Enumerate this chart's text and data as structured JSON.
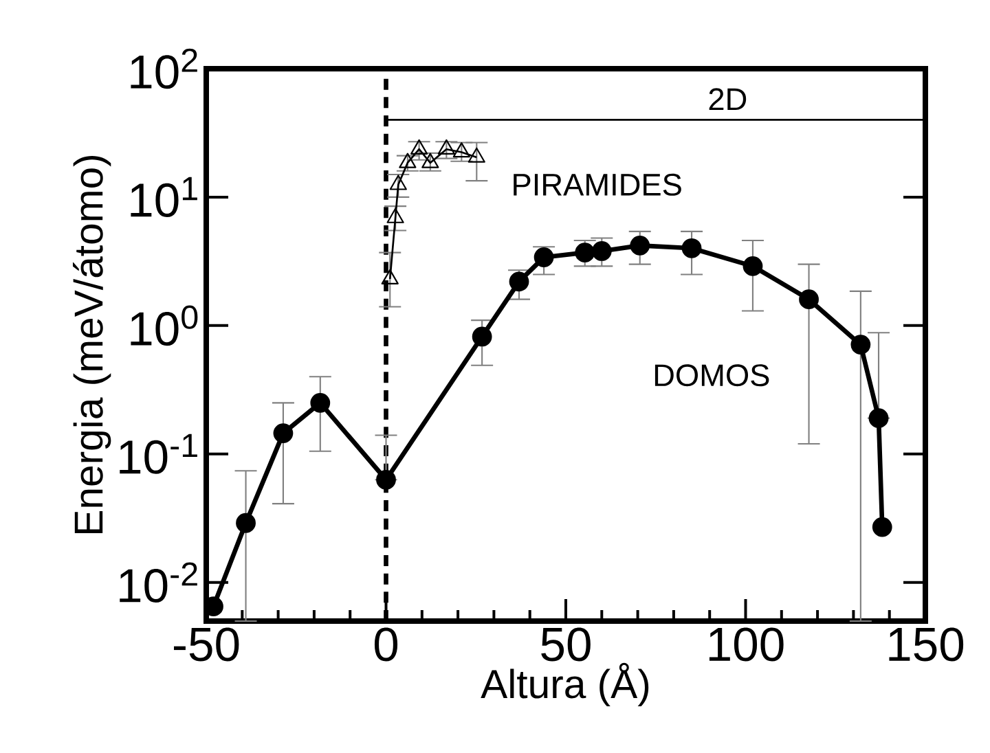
{
  "chart_data": {
    "type": "line",
    "xlabel": "Altura (Å)",
    "ylabel": "Energia (meV/átomo)",
    "xlim": [
      -50,
      150
    ],
    "xticks": [
      -50,
      0,
      50,
      100,
      150
    ],
    "ylim": [
      0.005,
      100
    ],
    "log": "y",
    "yticks": [
      {
        "value": 0.01,
        "label": "10$^{-2}$"
      },
      {
        "value": 0.1,
        "label": "10$^{-1}$"
      },
      {
        "value": 1,
        "label": "10$^{0}$"
      },
      {
        "value": 10,
        "label": "10$^{1}$"
      },
      {
        "value": 100,
        "label": "10$^{2}$"
      }
    ],
    "ref_lines": [
      {
        "axis": "x",
        "value": 0,
        "color": "#000000",
        "line_style": "dashed"
      }
    ],
    "series": [
      {
        "name": "DOMOS",
        "color": "#000000",
        "marker": "circle",
        "line_style": "solid",
        "x": [
          -48,
          -39,
          -28.6,
          -18.3,
          0,
          26.7,
          37,
          43.9,
          55.3,
          60,
          70.6,
          85,
          102,
          117.6,
          132,
          137,
          138
        ],
        "values": [
          0.0065,
          0.029,
          0.145,
          0.25,
          0.063,
          0.82,
          2.2,
          3.4,
          3.7,
          3.8,
          4.2,
          4.0,
          2.9,
          1.6,
          0.71,
          0.19,
          0.027
        ],
        "errors": [
          null,
          [
            0.005,
            0.074
          ],
          [
            0.041,
            0.25
          ],
          [
            0.105,
            0.4
          ],
          [
            0.063,
            0.14
          ],
          [
            0.49,
            1.1
          ],
          [
            1.6,
            2.7
          ],
          [
            2.5,
            4.1
          ],
          [
            2.9,
            4.6
          ],
          [
            2.9,
            4.8
          ],
          [
            3.0,
            5.4
          ],
          [
            2.5,
            5.4
          ],
          [
            1.3,
            4.6
          ],
          [
            0.12,
            3.0
          ],
          [
            0.005,
            1.85
          ],
          [
            0.19,
            0.88
          ],
          null
        ]
      },
      {
        "name": "PIRAMIDES",
        "color": "#000000",
        "marker": "triangle",
        "line_style": "solid",
        "x": [
          1.1,
          2.6,
          3.4,
          6,
          9.2,
          12.3,
          16.8,
          21,
          25.2
        ],
        "values": [
          2.3,
          6.9,
          12.5,
          18.5,
          23.6,
          18.5,
          23.6,
          22.4,
          20.4
        ],
        "errors": [
          [
            1.4,
            3.7
          ],
          [
            5.5,
            8.5
          ],
          [
            10,
            15
          ],
          [
            16,
            21
          ],
          [
            19.5,
            27
          ],
          [
            16,
            22
          ],
          [
            20,
            27
          ],
          [
            19,
            26.6
          ],
          [
            13.4,
            26.6
          ]
        ]
      },
      {
        "name": "2D",
        "color": "#000000",
        "marker": "none",
        "line_style": "solid",
        "x": [
          0,
          150
        ],
        "values": [
          40,
          40
        ]
      }
    ]
  }
}
